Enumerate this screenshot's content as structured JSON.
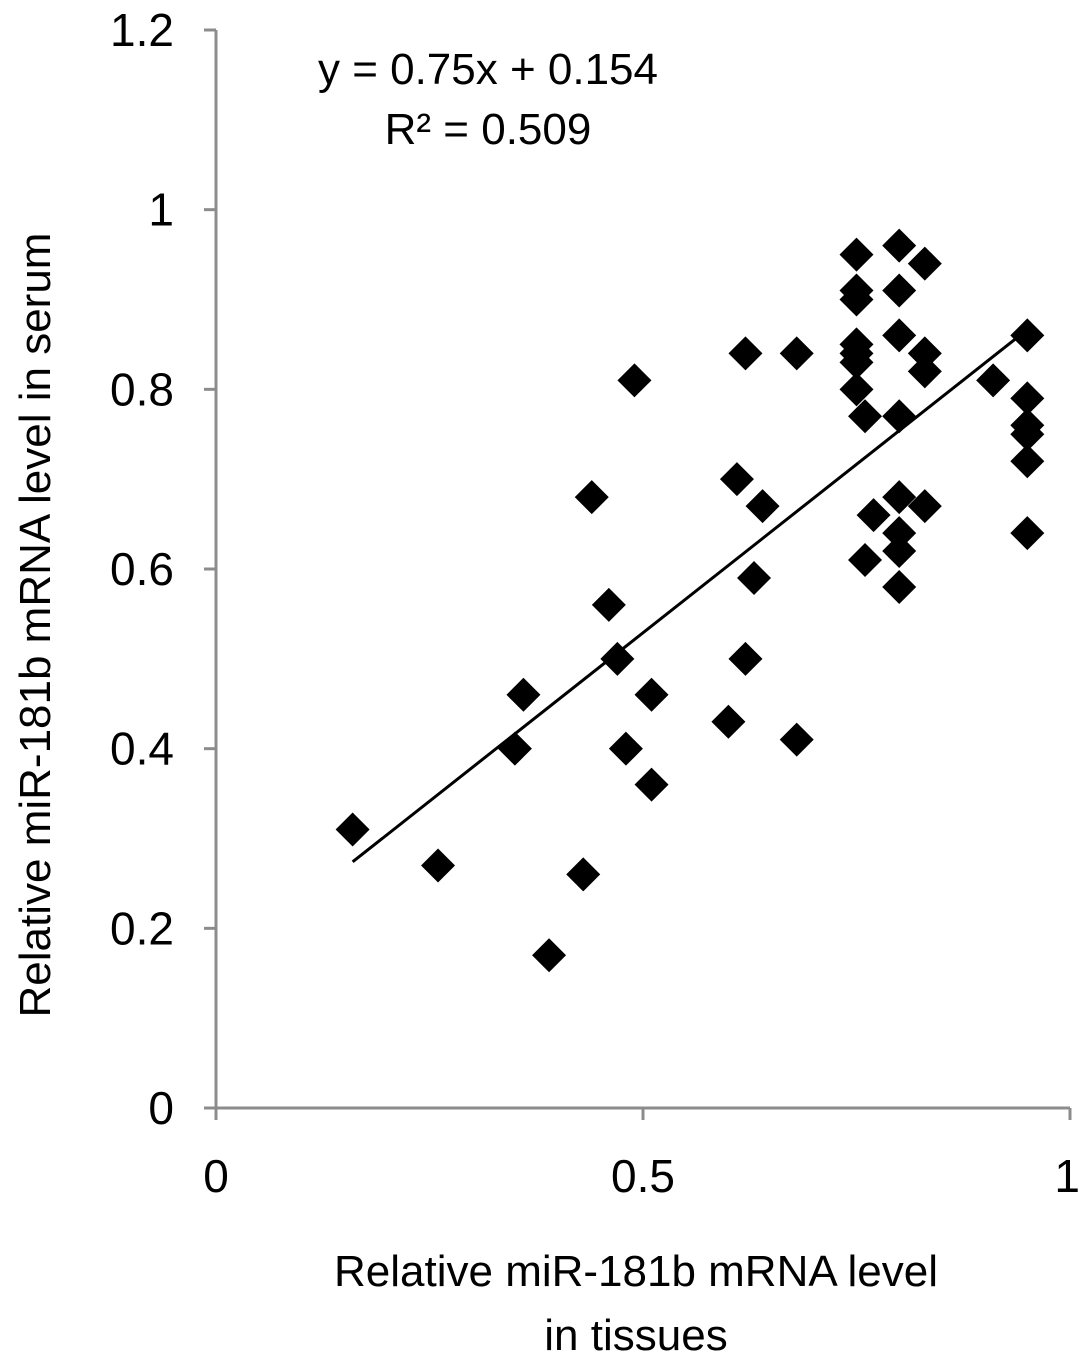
{
  "chart_data": {
    "type": "scatter",
    "title": "",
    "xlabel_lines": [
      "Relative miR-181b mRNA level",
      "in tissues"
    ],
    "ylabel": "Relative miR-181b mRNA level in serum",
    "xlim": [
      0,
      1
    ],
    "ylim": [
      0,
      1.2
    ],
    "x_ticks": [
      0,
      0.5,
      1
    ],
    "x_tick_labels": [
      "0",
      "0.5",
      "1"
    ],
    "y_ticks": [
      0,
      0.2,
      0.4,
      0.6,
      0.8,
      1,
      1.2
    ],
    "y_tick_labels": [
      "0",
      "0.2",
      "0.4",
      "0.6",
      "0.8",
      "1",
      "1.2"
    ],
    "grid": false,
    "marker": "diamond",
    "color": "#000000",
    "trendline": {
      "slope": 0.75,
      "intercept": 0.154,
      "x_range": [
        0.16,
        0.95
      ]
    },
    "annotations": {
      "equation": "y = 0.75x + 0.154",
      "r_squared": "R² = 0.509"
    },
    "points": [
      [
        0.16,
        0.31
      ],
      [
        0.26,
        0.27
      ],
      [
        0.35,
        0.4
      ],
      [
        0.36,
        0.46
      ],
      [
        0.43,
        0.26
      ],
      [
        0.39,
        0.17
      ],
      [
        0.44,
        0.68
      ],
      [
        0.46,
        0.56
      ],
      [
        0.47,
        0.5
      ],
      [
        0.48,
        0.4
      ],
      [
        0.49,
        0.81
      ],
      [
        0.51,
        0.36
      ],
      [
        0.51,
        0.46
      ],
      [
        0.6,
        0.43
      ],
      [
        0.61,
        0.7
      ],
      [
        0.62,
        0.5
      ],
      [
        0.62,
        0.84
      ],
      [
        0.63,
        0.59
      ],
      [
        0.64,
        0.67
      ],
      [
        0.68,
        0.41
      ],
      [
        0.68,
        0.84
      ],
      [
        0.75,
        0.95
      ],
      [
        0.75,
        0.91
      ],
      [
        0.75,
        0.9
      ],
      [
        0.75,
        0.85
      ],
      [
        0.75,
        0.84
      ],
      [
        0.75,
        0.83
      ],
      [
        0.75,
        0.8
      ],
      [
        0.76,
        0.77
      ],
      [
        0.76,
        0.61
      ],
      [
        0.77,
        0.66
      ],
      [
        0.8,
        0.96
      ],
      [
        0.8,
        0.91
      ],
      [
        0.8,
        0.86
      ],
      [
        0.8,
        0.77
      ],
      [
        0.8,
        0.68
      ],
      [
        0.8,
        0.64
      ],
      [
        0.8,
        0.62
      ],
      [
        0.8,
        0.58
      ],
      [
        0.83,
        0.94
      ],
      [
        0.83,
        0.84
      ],
      [
        0.83,
        0.82
      ],
      [
        0.83,
        0.67
      ],
      [
        0.91,
        0.81
      ],
      [
        0.95,
        0.86
      ],
      [
        0.95,
        0.79
      ],
      [
        0.95,
        0.76
      ],
      [
        0.95,
        0.75
      ],
      [
        0.95,
        0.72
      ],
      [
        0.95,
        0.64
      ]
    ]
  }
}
